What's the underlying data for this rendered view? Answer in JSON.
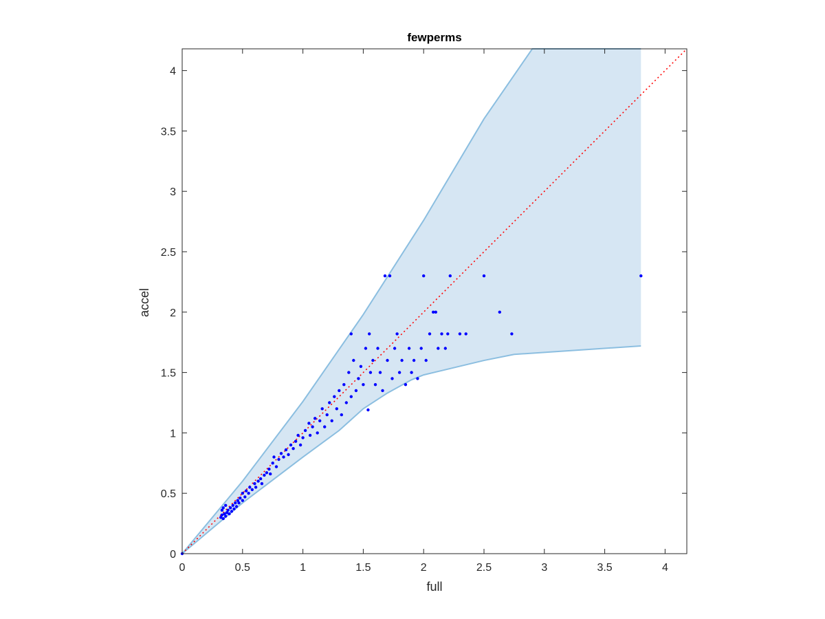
{
  "chart_data": {
    "type": "scatter",
    "title": "fewperms",
    "xlabel": "full",
    "ylabel": "accel",
    "xlim": [
      0,
      4.18
    ],
    "ylim": [
      0,
      4.18
    ],
    "xticks": [
      "0",
      "0.5",
      "1",
      "1.5",
      "2",
      "2.5",
      "3",
      "3.5",
      "4"
    ],
    "yticks": [
      "0",
      "0.5",
      "1",
      "1.5",
      "2",
      "2.5",
      "3",
      "3.5",
      "4"
    ],
    "grid": false,
    "reference_line": {
      "style": "dotted",
      "color": "#ff0000",
      "points": [
        [
          0,
          0
        ],
        [
          4.18,
          4.18
        ]
      ]
    },
    "band": {
      "color_fill": "#d6e6f3",
      "color_edge": "#8bbee0",
      "upper": [
        [
          0,
          0
        ],
        [
          0.5,
          0.6
        ],
        [
          1.0,
          1.26
        ],
        [
          1.5,
          1.98
        ],
        [
          2.0,
          2.76
        ],
        [
          2.5,
          3.6
        ],
        [
          2.9,
          4.18
        ],
        [
          3.8,
          4.18
        ]
      ],
      "lower": [
        [
          0,
          0
        ],
        [
          0.5,
          0.42
        ],
        [
          1.0,
          0.8
        ],
        [
          1.3,
          1.02
        ],
        [
          1.5,
          1.2
        ],
        [
          1.7,
          1.33
        ],
        [
          1.9,
          1.44
        ],
        [
          2.0,
          1.48
        ],
        [
          2.5,
          1.6
        ],
        [
          2.75,
          1.65
        ],
        [
          3.2,
          1.68
        ],
        [
          3.8,
          1.72
        ]
      ]
    },
    "series": [
      {
        "color": "#0000ff",
        "points": [
          [
            0.0,
            0.0
          ],
          [
            0.32,
            0.3
          ],
          [
            0.33,
            0.32
          ],
          [
            0.34,
            0.29
          ],
          [
            0.33,
            0.36
          ],
          [
            0.35,
            0.33
          ],
          [
            0.36,
            0.31
          ],
          [
            0.37,
            0.34
          ],
          [
            0.34,
            0.38
          ],
          [
            0.38,
            0.36
          ],
          [
            0.39,
            0.33
          ],
          [
            0.36,
            0.4
          ],
          [
            0.4,
            0.38
          ],
          [
            0.41,
            0.35
          ],
          [
            0.42,
            0.4
          ],
          [
            0.43,
            0.37
          ],
          [
            0.44,
            0.42
          ],
          [
            0.45,
            0.39
          ],
          [
            0.46,
            0.44
          ],
          [
            0.47,
            0.42
          ],
          [
            0.48,
            0.46
          ],
          [
            0.5,
            0.44
          ],
          [
            0.5,
            0.5
          ],
          [
            0.52,
            0.47
          ],
          [
            0.53,
            0.52
          ],
          [
            0.55,
            0.5
          ],
          [
            0.56,
            0.55
          ],
          [
            0.58,
            0.53
          ],
          [
            0.6,
            0.58
          ],
          [
            0.61,
            0.55
          ],
          [
            0.63,
            0.6
          ],
          [
            0.65,
            0.62
          ],
          [
            0.66,
            0.58
          ],
          [
            0.68,
            0.65
          ],
          [
            0.7,
            0.67
          ],
          [
            0.72,
            0.7
          ],
          [
            0.73,
            0.66
          ],
          [
            0.75,
            0.75
          ],
          [
            0.76,
            0.8
          ],
          [
            0.78,
            0.72
          ],
          [
            0.8,
            0.78
          ],
          [
            0.82,
            0.83
          ],
          [
            0.84,
            0.8
          ],
          [
            0.86,
            0.86
          ],
          [
            0.88,
            0.82
          ],
          [
            0.9,
            0.9
          ],
          [
            0.92,
            0.87
          ],
          [
            0.94,
            0.93
          ],
          [
            0.96,
            0.98
          ],
          [
            0.98,
            0.9
          ],
          [
            1.0,
            0.96
          ],
          [
            1.02,
            1.02
          ],
          [
            1.05,
            1.08
          ],
          [
            1.06,
            0.98
          ],
          [
            1.08,
            1.05
          ],
          [
            1.1,
            1.12
          ],
          [
            1.12,
            1.0
          ],
          [
            1.14,
            1.1
          ],
          [
            1.16,
            1.2
          ],
          [
            1.18,
            1.05
          ],
          [
            1.2,
            1.15
          ],
          [
            1.22,
            1.25
          ],
          [
            1.24,
            1.1
          ],
          [
            1.26,
            1.3
          ],
          [
            1.28,
            1.2
          ],
          [
            1.3,
            1.35
          ],
          [
            1.32,
            1.15
          ],
          [
            1.34,
            1.4
          ],
          [
            1.36,
            1.25
          ],
          [
            1.38,
            1.5
          ],
          [
            1.4,
            1.3
          ],
          [
            1.4,
            1.82
          ],
          [
            1.42,
            1.6
          ],
          [
            1.44,
            1.35
          ],
          [
            1.46,
            1.45
          ],
          [
            1.48,
            1.55
          ],
          [
            1.5,
            1.4
          ],
          [
            1.52,
            1.7
          ],
          [
            1.54,
            1.19
          ],
          [
            1.55,
            1.82
          ],
          [
            1.56,
            1.5
          ],
          [
            1.58,
            1.6
          ],
          [
            1.6,
            1.4
          ],
          [
            1.62,
            1.7
          ],
          [
            1.64,
            1.5
          ],
          [
            1.66,
            1.35
          ],
          [
            1.68,
            2.3
          ],
          [
            1.7,
            1.6
          ],
          [
            1.72,
            2.3
          ],
          [
            1.74,
            1.45
          ],
          [
            1.76,
            1.7
          ],
          [
            1.78,
            1.82
          ],
          [
            1.8,
            1.5
          ],
          [
            1.82,
            1.6
          ],
          [
            1.85,
            1.4
          ],
          [
            1.88,
            1.7
          ],
          [
            1.9,
            1.5
          ],
          [
            1.92,
            1.6
          ],
          [
            1.95,
            1.45
          ],
          [
            1.98,
            1.7
          ],
          [
            2.0,
            2.3
          ],
          [
            2.02,
            1.6
          ],
          [
            2.05,
            1.82
          ],
          [
            2.08,
            2.0
          ],
          [
            2.1,
            2.0
          ],
          [
            2.12,
            1.7
          ],
          [
            2.15,
            1.82
          ],
          [
            2.18,
            1.7
          ],
          [
            2.2,
            1.82
          ],
          [
            2.22,
            2.3
          ],
          [
            2.3,
            1.82
          ],
          [
            2.35,
            1.82
          ],
          [
            2.5,
            2.3
          ],
          [
            2.63,
            2.0
          ],
          [
            2.73,
            1.82
          ],
          [
            3.8,
            2.3
          ]
        ]
      }
    ]
  }
}
